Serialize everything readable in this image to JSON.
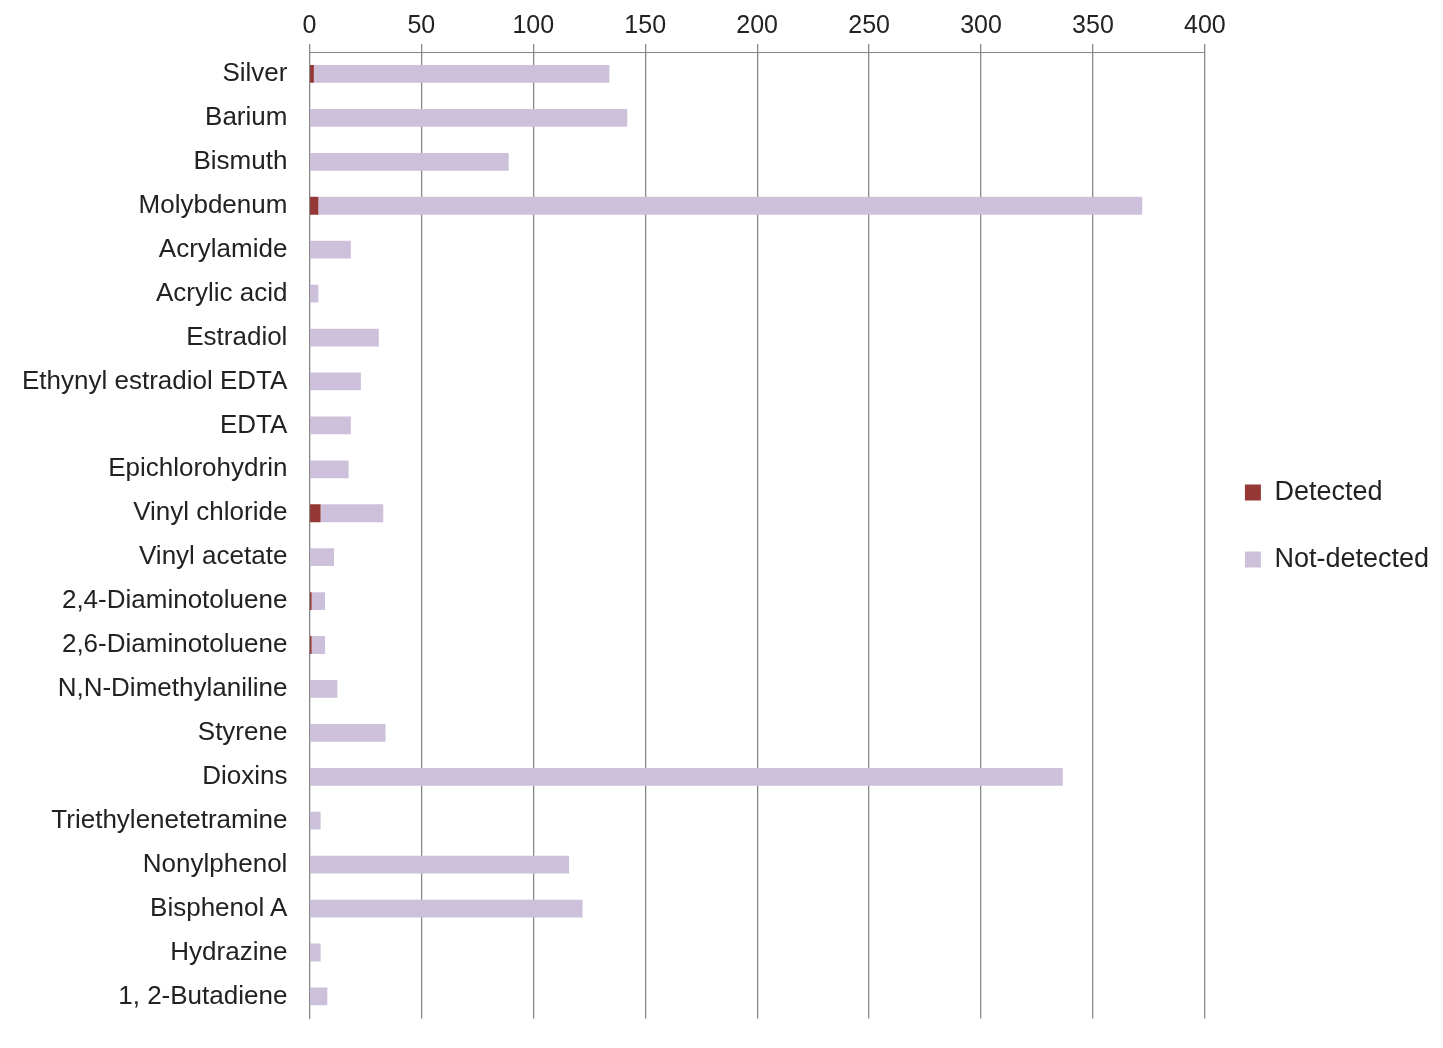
{
  "chart_data": {
    "type": "bar",
    "orientation": "horizontal",
    "stacked": true,
    "categories": [
      "Silver",
      "Barium",
      "Bismuth",
      "Molybdenum",
      "Acrylamide",
      "Acrylic acid",
      "Estradiol",
      "Ethynyl estradiol EDTA",
      "EDTA",
      "Epichlorohydrin",
      "Vinyl chloride",
      "Vinyl acetate",
      "2,4-Diaminotoluene",
      "2,6-Diaminotoluene",
      "N,N-Dimethylaniline",
      "Styrene",
      "Dioxins",
      "Triethylenetetramine",
      "Nonylphenol",
      "Bisphenol A",
      "Hydrazine",
      "1, 2-Butadiene"
    ],
    "series": [
      {
        "name": "Detected",
        "color": "#953735",
        "values": [
          2,
          0,
          0,
          4,
          0,
          0,
          0,
          0,
          0,
          0,
          5,
          0,
          1,
          1,
          0,
          0,
          0,
          0,
          0,
          0,
          0,
          0
        ]
      },
      {
        "name": "Not-detected",
        "color": "#ccc0da",
        "values": [
          132,
          142,
          89,
          368,
          18.5,
          4,
          31,
          23,
          18.5,
          17.5,
          28,
          11,
          6,
          6,
          12.5,
          34,
          336.5,
          5,
          116,
          122,
          5,
          8
        ]
      }
    ],
    "xlim": [
      0,
      400
    ],
    "xticks": [
      0,
      50,
      100,
      150,
      200,
      250,
      300,
      350,
      400
    ],
    "grid": "x",
    "legend": "right"
  }
}
